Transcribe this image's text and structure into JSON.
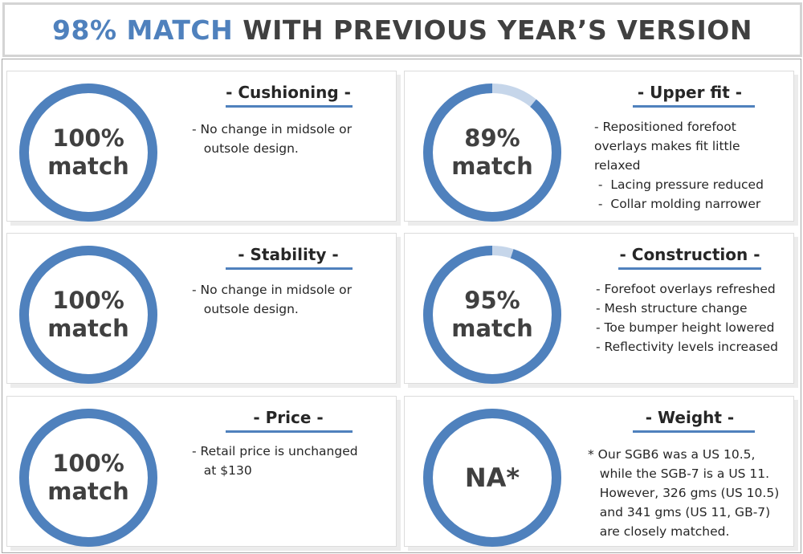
{
  "header": {
    "highlight": "98% MATCH",
    "rest": "WITH PREVIOUS YEAR’S VERSION"
  },
  "colors": {
    "accent": "#4f81bd",
    "accent_light": "#c6d6ea",
    "text": "#404040"
  },
  "panels": [
    {
      "title": "- Cushioning -",
      "label_line1": "100%",
      "label_line2": "match",
      "match_percent": 100,
      "lines": [
        "-  No change in midsole or",
        "   outsole design."
      ]
    },
    {
      "title": "- Upper fit -",
      "label_line1": "89%",
      "label_line2": "match",
      "match_percent": 89,
      "lines": [
        "- Repositioned forefoot",
        "overlays makes fit little",
        "relaxed",
        " -  Lacing pressure reduced",
        " -  Collar molding narrower"
      ]
    },
    {
      "title": "- Stability -",
      "label_line1": "100%",
      "label_line2": "match",
      "match_percent": 100,
      "lines": [
        "-  No change in midsole or",
        "   outsole design."
      ]
    },
    {
      "title": "- Construction -",
      "label_line1": "95%",
      "label_line2": "match",
      "match_percent": 95,
      "lines": [
        "- Forefoot overlays refreshed",
        "- Mesh structure change",
        "- Toe bumper height lowered",
        "- Reflectivity levels increased"
      ]
    },
    {
      "title": "- Price -",
      "label_line1": "100%",
      "label_line2": "match",
      "match_percent": 100,
      "lines": [
        "-  Retail price is unchanged",
        "   at $130"
      ]
    },
    {
      "title": "- Weight -",
      "label_line1": "NA*",
      "label_line2": "",
      "match_percent": 100,
      "lines": [
        "* Our SGB6 was a US 10.5,",
        "   while the SGB-7 is a US 11.",
        "   However, 326 gms (US 10.5)",
        "   and 341 gms (US 11, GB-7)",
        "   are closely matched."
      ]
    }
  ]
}
